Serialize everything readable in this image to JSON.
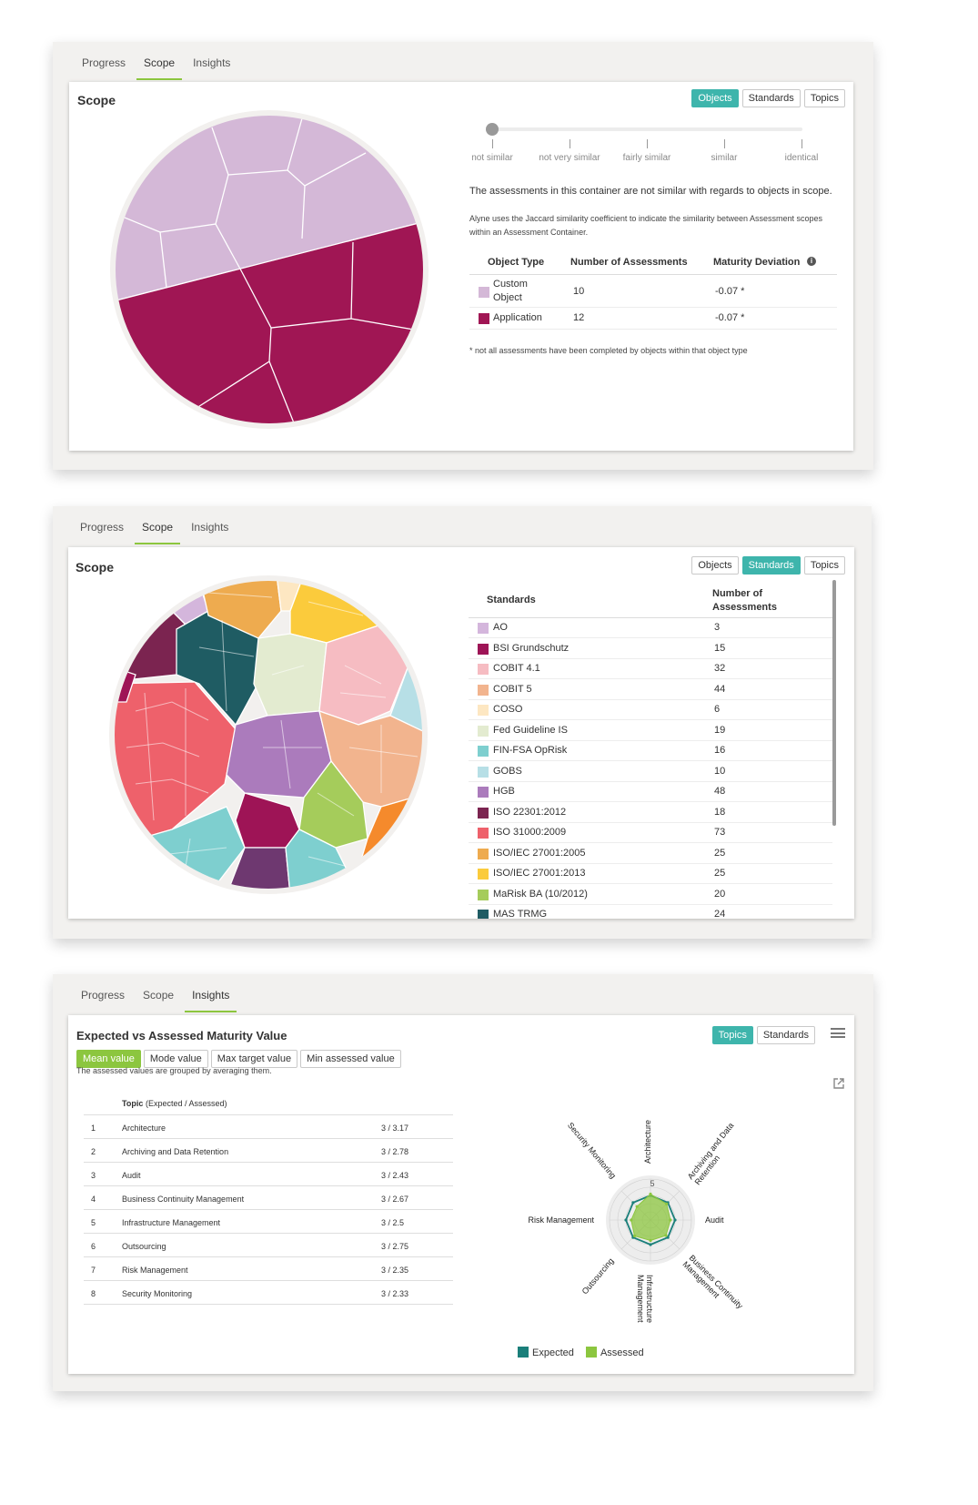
{
  "tabs": [
    "Progress",
    "Scope",
    "Insights"
  ],
  "panel1": {
    "active_tab": "Scope",
    "title": "Scope",
    "toggle": [
      "Objects",
      "Standards",
      "Topics"
    ],
    "toggle_active": "Objects",
    "similarity_labels": [
      "not similar",
      "not very similar",
      "fairly similar",
      "similar",
      "identical"
    ],
    "similarity_value": "not similar",
    "statement": "The assessments in this container are not similar with regards to objects in scope.",
    "explanation": "Alyne uses the Jaccard similarity coefficient to indicate the similarity between Assessment scopes within an Assessment Container.",
    "table_headers": [
      "Object Type",
      "Number of Assessments",
      "Maturity Deviation"
    ],
    "info_icon": "info-icon",
    "rows": [
      {
        "type_line1": "Custom",
        "type_line2": "Object",
        "count": "10",
        "deviation": "-0.07 *",
        "color": "#d3b8d8"
      },
      {
        "type": "Application",
        "count": "12",
        "deviation": "-0.07 *",
        "color": "#a01654"
      }
    ],
    "footnote": "* not all assessments have been completed by objects within that object type"
  },
  "panel2": {
    "active_tab": "Scope",
    "title": "Scope",
    "toggle": [
      "Objects",
      "Standards",
      "Topics"
    ],
    "toggle_active": "Standards",
    "header_standards": "Standards",
    "header_count_line1": "Number of",
    "header_count_line2": "Assessments",
    "rows": [
      {
        "name": "AO",
        "count": "3",
        "color": "#d4b6dc"
      },
      {
        "name": "BSI Grundschutz",
        "count": "15",
        "color": "#9e1456"
      },
      {
        "name": "COBIT 4.1",
        "count": "32",
        "color": "#f6bcc2"
      },
      {
        "name": "COBIT 5",
        "count": "44",
        "color": "#f2b48e"
      },
      {
        "name": "COSO",
        "count": "6",
        "color": "#fde7c2"
      },
      {
        "name": "Fed Guideline IS",
        "count": "19",
        "color": "#e3ebd0"
      },
      {
        "name": "FIN-FSA OpRisk",
        "count": "16",
        "color": "#7ecfcf"
      },
      {
        "name": "GOBS",
        "count": "10",
        "color": "#b7dfe6"
      },
      {
        "name": "HGB",
        "count": "48",
        "color": "#ab7bbc"
      },
      {
        "name": "ISO 22301:2012",
        "count": "18",
        "color": "#7b2450"
      },
      {
        "name": "ISO 31000:2009",
        "count": "73",
        "color": "#ee616b"
      },
      {
        "name": "ISO/IEC 27001:2005",
        "count": "25",
        "color": "#eeab4f"
      },
      {
        "name": "ISO/IEC 27001:2013",
        "count": "25",
        "color": "#fbcb3c"
      },
      {
        "name": "MaRisk BA (10/2012)",
        "count": "20",
        "color": "#a5cc5b"
      },
      {
        "name": "MAS TRMG",
        "count": "24",
        "color": "#1f5c63"
      }
    ]
  },
  "panel3": {
    "active_tab": "Insights",
    "title": "Expected vs Assessed Maturity Value",
    "toggle": [
      "Topics",
      "Standards"
    ],
    "toggle_active": "Topics",
    "mode_buttons": [
      "Mean value",
      "Mode value",
      "Max target value",
      "Min assessed value"
    ],
    "mode_active": "Mean value",
    "grouping_note": "The assessed values are grouped by averaging them.",
    "topic_header": "Topic",
    "topic_header_sub": "(Expected / Assessed)",
    "topics": [
      {
        "num": "1",
        "name": "Architecture",
        "value": "3 / 3.17"
      },
      {
        "num": "2",
        "name": "Archiving and Data Retention",
        "value": "3 / 2.78"
      },
      {
        "num": "3",
        "name": "Audit",
        "value": "3 / 2.43"
      },
      {
        "num": "4",
        "name": "Business Continuity Management",
        "value": "3 / 2.67"
      },
      {
        "num": "5",
        "name": "Infrastructure Management",
        "value": "3 / 2.5"
      },
      {
        "num": "6",
        "name": "Outsourcing",
        "value": "3 / 2.75"
      },
      {
        "num": "7",
        "name": "Risk Management",
        "value": "3 / 2.35"
      },
      {
        "num": "8",
        "name": "Security Monitoring",
        "value": "3 / 2.33"
      }
    ],
    "radar_labels": [
      "Architecture",
      "Archiving and Data Retention",
      "Audit",
      "Business Continuity Management",
      "Infrastructure Management",
      "Outsourcing",
      "Risk Management",
      "Security Monitoring"
    ],
    "radar_max_label": "5",
    "legend": [
      {
        "name": "Expected",
        "color": "#1a7f7a"
      },
      {
        "name": "Assessed",
        "color": "#8cc63f"
      }
    ],
    "menu_icon": "hamburger-menu-icon",
    "export_icon": "external-link-icon"
  },
  "chart_data": {
    "type": "radar",
    "title": "Expected vs Assessed Maturity Value",
    "axes": [
      "Architecture",
      "Archiving and Data Retention",
      "Audit",
      "Business Continuity Management",
      "Infrastructure Management",
      "Outsourcing",
      "Risk Management",
      "Security Monitoring"
    ],
    "range": [
      0,
      5
    ],
    "series": [
      {
        "name": "Expected",
        "values": [
          3,
          3,
          3,
          3,
          3,
          3,
          3,
          3
        ]
      },
      {
        "name": "Assessed",
        "values": [
          3.17,
          2.78,
          2.43,
          2.67,
          2.5,
          2.75,
          2.35,
          2.33
        ]
      }
    ]
  }
}
